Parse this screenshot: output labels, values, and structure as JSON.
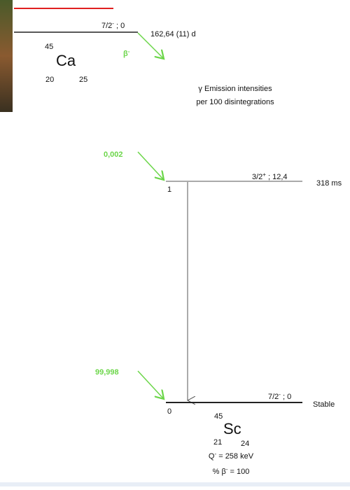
{
  "parent": {
    "mass": "45",
    "symbol": "Ca",
    "z": "20",
    "n": "25",
    "spin": "7/2",
    "parity": "-",
    "energy": " ; 0",
    "half_life": "162,64 (11) d",
    "decay_symbol": "β",
    "decay_sign": "-"
  },
  "legend": [
    "γ Emission intensities",
    "per 100 disintegrations"
  ],
  "levels": [
    {
      "intensity": "0,002",
      "spin": "3/2",
      "parity": "+",
      "energy": " ; 12,4",
      "half_life": "318 ms",
      "index": "1"
    },
    {
      "intensity": "99,998",
      "spin": "7/2",
      "parity": "-",
      "energy": " ; 0",
      "half_life": "Stable",
      "index": "0"
    }
  ],
  "daughter": {
    "mass": "45",
    "symbol": "Sc",
    "z": "21",
    "n": "24",
    "q_symbol": "Q",
    "q_sign": "-",
    "q_value": " = 258 keV",
    "branch_symbol": "% β",
    "branch_sign": "-",
    "branch_value": " = 100"
  }
}
